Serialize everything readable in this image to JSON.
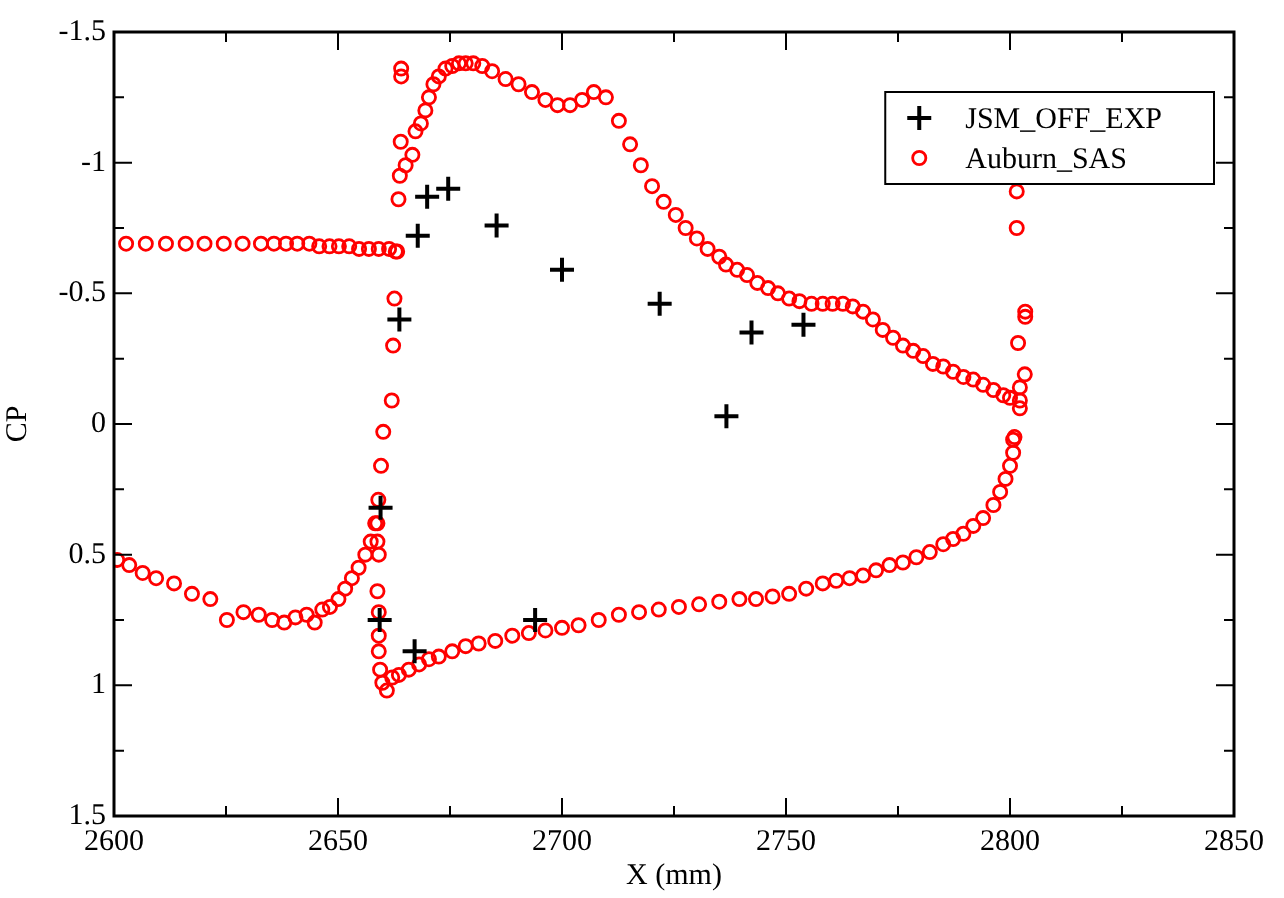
{
  "chart_data": {
    "type": "scatter",
    "xlabel": "X (mm)",
    "ylabel": "CP",
    "xlim": [
      2600,
      2850
    ],
    "ylim": [
      1.5,
      -1.5
    ],
    "xticks": [
      2600,
      {
        "value": 2625,
        "label": null
      },
      2650,
      {
        "value": 2675,
        "label": null
      },
      2700,
      {
        "value": 2725,
        "label": null
      },
      2750,
      {
        "value": 2775,
        "label": null
      },
      2800,
      {
        "value": 2825,
        "label": null
      },
      2850
    ],
    "yticks": [
      -1.5,
      {
        "value": -1.25,
        "label": null
      },
      -1,
      {
        "value": -0.75,
        "label": null
      },
      -0.5,
      {
        "value": -0.25,
        "label": null
      },
      0,
      {
        "value": 0.25,
        "label": null
      },
      0.5,
      {
        "value": 0.75,
        "label": null
      },
      1,
      {
        "value": 1.25,
        "label": null
      },
      1.5
    ],
    "grid": false,
    "legend": "top right",
    "series": [
      {
        "name": "JSM_OFF_EXP",
        "color": "#000000",
        "marker": "cross",
        "x": [
          2659.3,
          2659.5,
          2663.7,
          2667.1,
          2667.8,
          2669.9,
          2674.6,
          2685.4,
          2694,
          2700,
          2721.8,
          2736.7,
          2742.3,
          2753.9
        ],
        "values": [
          0.75,
          0.32,
          -0.4,
          0.87,
          -0.72,
          -0.87,
          -0.9,
          -0.76,
          0.75,
          -0.59,
          -0.46,
          -0.03,
          -0.35,
          -0.38
        ]
      },
      {
        "name": "Auburn_SAS",
        "color": "#ff0000",
        "marker": "circle",
        "x": [
          2600.7,
          2603.4,
          2606.4,
          2609.4,
          2613.4,
          2617.4,
          2621.5,
          2625.2,
          2628.9,
          2632.3,
          2635.3,
          2638,
          2640.5,
          2643,
          2644.8,
          2646.5,
          2648.2,
          2650.1,
          2651.6,
          2653.1,
          2654.6,
          2656.1,
          2657.3,
          2658.3,
          2659,
          2659.6,
          2660.1,
          2662,
          2662.3,
          2662.6,
          2663.2,
          2663.5,
          2663.8,
          2664,
          2664.1,
          2664.1,
          2602.7,
          2607.1,
          2611.6,
          2616,
          2620.2,
          2624.5,
          2628.7,
          2632.8,
          2635.7,
          2638.4,
          2640.9,
          2643.6,
          2645.8,
          2648.1,
          2650.2,
          2652.5,
          2654.7,
          2656.9,
          2659.1,
          2661.4,
          2662.9,
          2665.1,
          2666.6,
          2667.3,
          2668.5,
          2669.5,
          2670.3,
          2671.3,
          2672.5,
          2674,
          2675.5,
          2677,
          2678.5,
          2680.2,
          2682.2,
          2684.4,
          2687.4,
          2690.3,
          2693.3,
          2696.3,
          2699,
          2701.8,
          2704.5,
          2707.1,
          2709.8,
          2712.7,
          2715.2,
          2717.6,
          2720.1,
          2722.7,
          2725.4,
          2727.6,
          2730.1,
          2732.5,
          2735.1,
          2736.6,
          2739.1,
          2741.3,
          2743.6,
          2746,
          2748.2,
          2750.7,
          2753,
          2755.7,
          2758.2,
          2760.4,
          2762.7,
          2764.9,
          2767.2,
          2769.4,
          2771.6,
          2773.9,
          2776.1,
          2778.4,
          2780.6,
          2782.8,
          2785.1,
          2787.3,
          2789.6,
          2791.8,
          2794,
          2796.3,
          2798.5,
          2800,
          2802.2,
          2801.5,
          2801.5,
          2803.4,
          2803.4,
          2801.8,
          2803.3,
          2802.2,
          2802.2,
          2801,
          2800.7,
          2800.7,
          2800,
          2799,
          2797.8,
          2796.3,
          2794,
          2791.8,
          2789.6,
          2787.3,
          2785.1,
          2782.1,
          2779.1,
          2776.1,
          2773.1,
          2770.1,
          2767.2,
          2764.2,
          2761.2,
          2758.2,
          2754.5,
          2750.7,
          2747,
          2743.3,
          2739.6,
          2735.1,
          2730.6,
          2726.1,
          2721.6,
          2717.2,
          2712.7,
          2708.2,
          2703.7,
          2700,
          2696.3,
          2692.6,
          2688.9,
          2685.1,
          2681.4,
          2678.5,
          2675.5,
          2672.5,
          2670.3,
          2668.1,
          2665.8,
          2663.6,
          2662.1,
          2660.9,
          2659.9,
          2659.4,
          2659.1,
          2659.1,
          2659.1,
          2658.8,
          2659.1,
          2658.8,
          2658.8
        ],
        "values": [
          0.52,
          0.54,
          0.57,
          0.59,
          0.61,
          0.65,
          0.67,
          0.75,
          0.72,
          0.73,
          0.75,
          0.76,
          0.74,
          0.73,
          0.76,
          0.71,
          0.7,
          0.67,
          0.63,
          0.59,
          0.55,
          0.5,
          0.45,
          0.38,
          0.29,
          0.16,
          0.03,
          -0.09,
          -0.3,
          -0.48,
          -0.66,
          -0.86,
          -0.95,
          -1.08,
          -1.33,
          -1.36,
          -0.69,
          -0.69,
          -0.69,
          -0.69,
          -0.69,
          -0.69,
          -0.69,
          -0.69,
          -0.69,
          -0.69,
          -0.69,
          -0.69,
          -0.68,
          -0.68,
          -0.68,
          -0.68,
          -0.67,
          -0.67,
          -0.67,
          -0.67,
          -0.66,
          -0.99,
          -1.03,
          -1.12,
          -1.15,
          -1.2,
          -1.25,
          -1.3,
          -1.33,
          -1.36,
          -1.37,
          -1.38,
          -1.38,
          -1.38,
          -1.37,
          -1.35,
          -1.32,
          -1.3,
          -1.27,
          -1.24,
          -1.22,
          -1.22,
          -1.24,
          -1.27,
          -1.25,
          -1.16,
          -1.07,
          -0.99,
          -0.91,
          -0.85,
          -0.8,
          -0.75,
          -0.71,
          -0.67,
          -0.64,
          -0.61,
          -0.59,
          -0.57,
          -0.54,
          -0.52,
          -0.5,
          -0.48,
          -0.47,
          -0.46,
          -0.46,
          -0.46,
          -0.46,
          -0.45,
          -0.43,
          -0.4,
          -0.36,
          -0.33,
          -0.3,
          -0.28,
          -0.26,
          -0.23,
          -0.22,
          -0.2,
          -0.18,
          -0.17,
          -0.15,
          -0.13,
          -0.11,
          -0.1,
          -0.09,
          -0.89,
          -0.75,
          -0.43,
          -0.41,
          -0.31,
          -0.19,
          -0.14,
          -0.06,
          0.05,
          0.06,
          0.11,
          0.16,
          0.21,
          0.26,
          0.31,
          0.36,
          0.39,
          0.42,
          0.44,
          0.46,
          0.49,
          0.51,
          0.53,
          0.54,
          0.56,
          0.58,
          0.59,
          0.6,
          0.61,
          0.63,
          0.65,
          0.66,
          0.67,
          0.67,
          0.68,
          0.69,
          0.7,
          0.71,
          0.72,
          0.73,
          0.75,
          0.77,
          0.78,
          0.79,
          0.8,
          0.81,
          0.83,
          0.84,
          0.85,
          0.87,
          0.89,
          0.9,
          0.92,
          0.94,
          0.96,
          0.97,
          1.02,
          0.99,
          0.94,
          0.87,
          0.81,
          0.72,
          0.64,
          0.5,
          0.45,
          0.38
        ]
      }
    ]
  }
}
